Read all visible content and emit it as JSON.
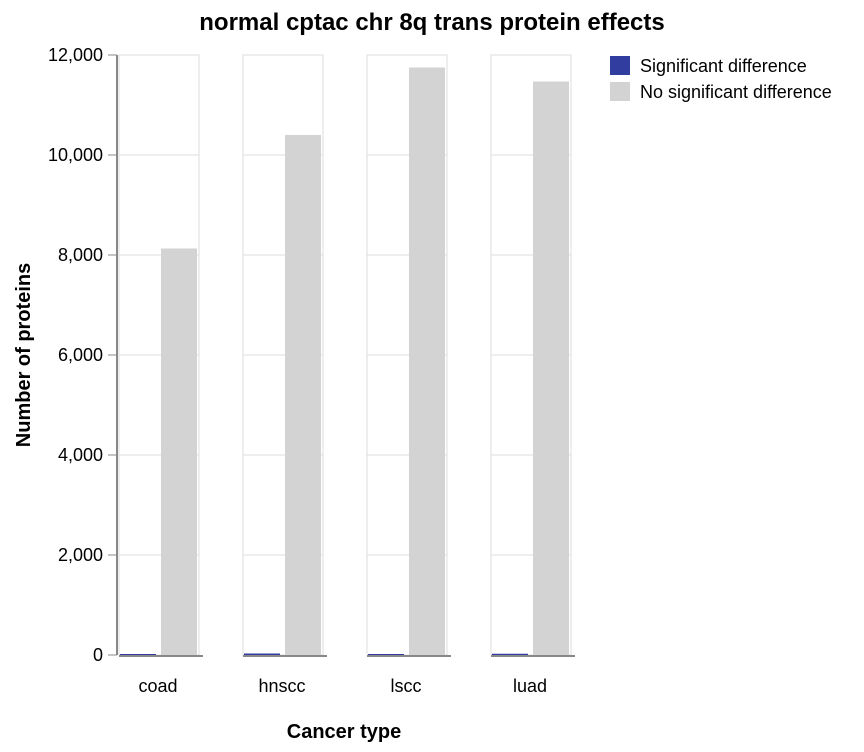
{
  "chart_data": {
    "type": "bar",
    "title": "normal cptac chr 8q trans protein effects",
    "xlabel": "Cancer type",
    "ylabel": "Number of proteins",
    "ylim": [
      0,
      12000
    ],
    "yticks": [
      0,
      2000,
      4000,
      6000,
      8000,
      10000,
      12000
    ],
    "ytick_labels": [
      "0",
      "2,000",
      "4,000",
      "6,000",
      "8,000",
      "10,000",
      "12,000"
    ],
    "categories": [
      "coad",
      "hnscc",
      "lscc",
      "luad"
    ],
    "series": [
      {
        "name": "Significant difference",
        "color": "#313e9f",
        "values": [
          20,
          30,
          20,
          25
        ]
      },
      {
        "name": "No significant difference",
        "color": "#d3d3d3",
        "values": [
          8130,
          10400,
          11750,
          11470
        ]
      }
    ],
    "legend_position": "top-right",
    "grid": true
  }
}
